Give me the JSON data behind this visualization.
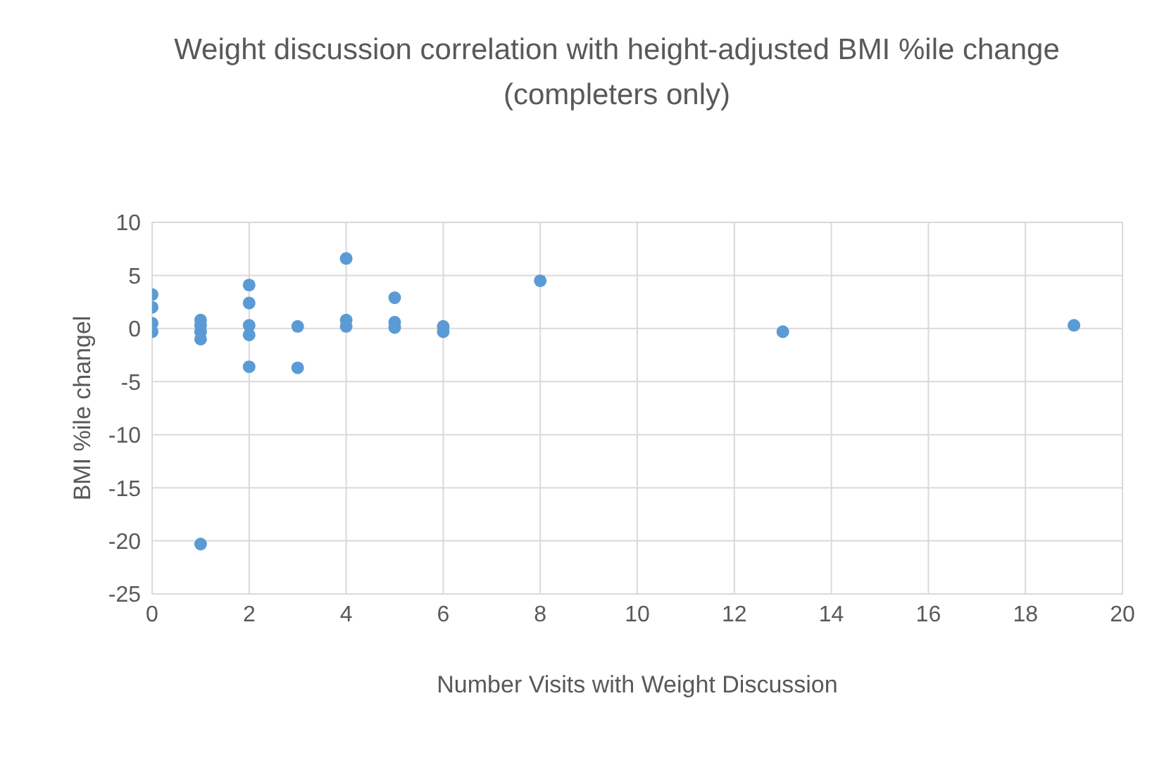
{
  "chart_data": {
    "type": "scatter",
    "title": "Weight discussion correlation with height-adjusted BMI %ile change (completers only)",
    "xlabel": "Number Visits with Weight Discussion",
    "ylabel": "BMI %ile changel",
    "x": [
      0,
      0,
      0,
      0,
      1,
      1,
      1,
      1,
      1,
      2,
      2,
      2,
      2,
      2,
      3,
      3,
      4,
      4,
      4,
      5,
      5,
      5,
      6,
      6,
      8,
      13,
      19
    ],
    "series": [
      {
        "color": "#5b9bd5",
        "values": [
          3.2,
          2,
          0.5,
          -0.3,
          0.8,
          0.3,
          -0.3,
          -1,
          -20.3,
          4.1,
          2.4,
          0.3,
          -0.6,
          -3.6,
          0.2,
          -3.7,
          6.6,
          0.8,
          0.2,
          2.9,
          0.6,
          0.1,
          0.2,
          -0.3,
          4.5,
          -0.3,
          0.3
        ]
      }
    ],
    "xlim": [
      0,
      20
    ],
    "xticks": [
      0,
      2,
      4,
      6,
      8,
      10,
      12,
      14,
      16,
      18,
      20
    ],
    "ylim": [
      -25,
      10
    ],
    "yticks": [
      -25,
      -20,
      -15,
      -10,
      -5,
      0,
      5,
      10
    ],
    "grid": true,
    "marker": "circle"
  }
}
